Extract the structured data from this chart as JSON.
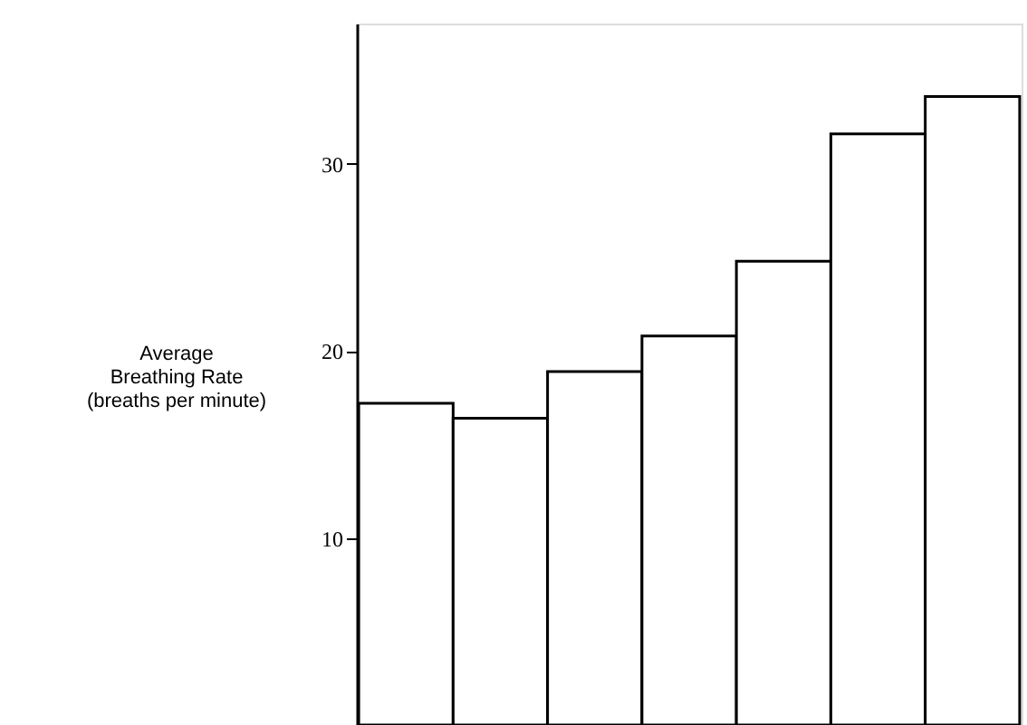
{
  "chart_data": {
    "type": "bar",
    "ylabel": "Average\nBreathing Rate\n(breaths per minute)",
    "categories": [
      null,
      null,
      null,
      null,
      null,
      null,
      null
    ],
    "values": [
      17.2,
      16.4,
      18.9,
      20.8,
      24.8,
      31.6,
      33.6
    ],
    "color": "#ffffff",
    "ylim": [
      0,
      37.5
    ],
    "yticks": [
      10,
      20,
      30
    ],
    "grid": false,
    "tick_labels": "y"
  }
}
